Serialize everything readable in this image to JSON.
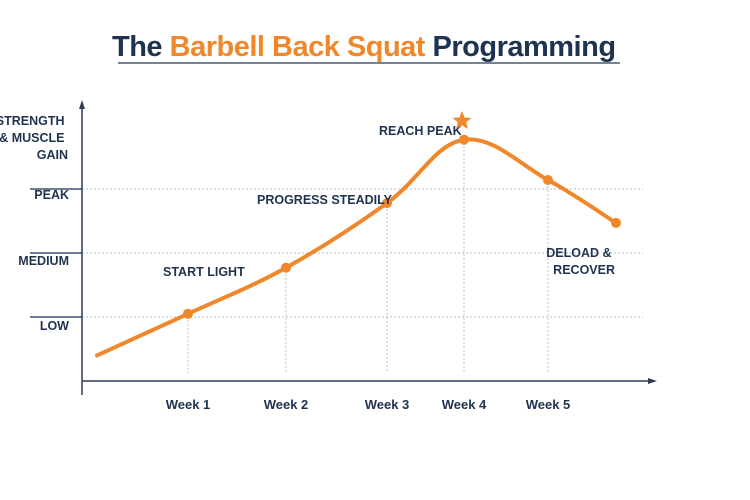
{
  "title": {
    "prefix": "The",
    "highlight": "Barbell Back Squat",
    "suffix": "Programming"
  },
  "colors": {
    "accent": "#f0872a",
    "text": "#1f3350",
    "grid": "#b8bec8"
  },
  "chart_data": {
    "type": "line",
    "title": "The Barbell Back Squat Programming",
    "ylabel": [
      "STRENGTH",
      "& MUSCLE",
      "GAIN"
    ],
    "y_levels": [
      "LOW",
      "MEDIUM",
      "PEAK"
    ],
    "x_ticks": [
      "Week 1",
      "Week 2",
      "Week 3",
      "Week 4",
      "Week 5"
    ],
    "grid": true,
    "series": [
      {
        "points": [
          {
            "x": 0,
            "y": 0.4,
            "marker": false
          },
          {
            "x": 1,
            "y": 1.05,
            "marker": true
          },
          {
            "x": 2,
            "y": 1.77,
            "marker": true
          },
          {
            "x": 3,
            "y": 2.78,
            "marker": true
          },
          {
            "x": 4,
            "y": 3.77,
            "marker": true
          },
          {
            "x": 5,
            "y": 3.14,
            "marker": true
          },
          {
            "x": 5.8,
            "y": 2.47,
            "marker": true
          }
        ]
      }
    ],
    "annotations": [
      {
        "text": "START LIGHT"
      },
      {
        "text": "PROGRESS STEADILY"
      },
      {
        "text": "REACH PEAK",
        "icon": "star-icon"
      },
      {
        "lines": [
          "DELOAD &",
          "RECOVER"
        ]
      }
    ]
  }
}
